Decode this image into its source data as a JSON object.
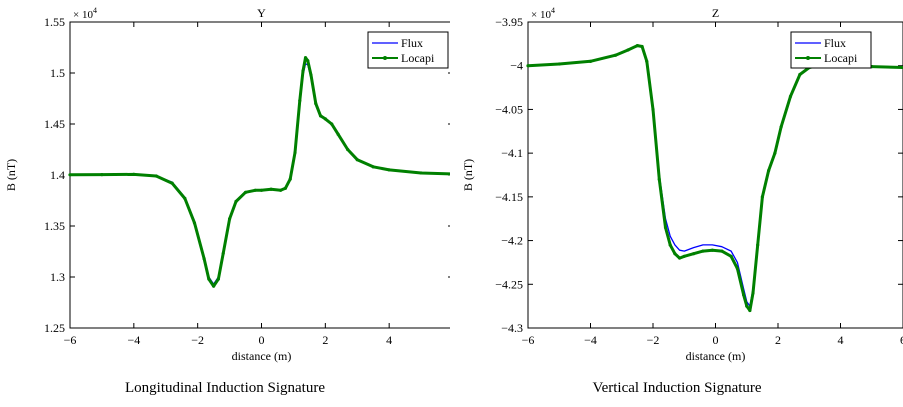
{
  "chart_data": [
    {
      "type": "line",
      "title": "Y",
      "caption": "Longitudinal Induction Signature",
      "xlabel": "distance (m)",
      "ylabel": "B (nT)",
      "exponent_label": "× 10",
      "exponent_power": "4",
      "xlim": [
        -6,
        6
      ],
      "ylim": [
        1.25,
        1.55
      ],
      "xticks": [
        -6,
        -4,
        -2,
        0,
        2,
        4,
        6
      ],
      "yticks": [
        1.25,
        1.3,
        1.35,
        1.4,
        1.45,
        1.5,
        1.55
      ],
      "xtick_labels": [
        "−6",
        "−4",
        "−2",
        "0",
        "2",
        "4",
        "6"
      ],
      "ytick_labels": [
        "1.25",
        "1.3",
        "1.35",
        "1.4",
        "1.45",
        "1.5",
        "1.55"
      ],
      "legend_position": "top-right",
      "x": [
        -6,
        -5,
        -4,
        -3.3,
        -2.8,
        -2.4,
        -2.1,
        -1.8,
        -1.65,
        -1.5,
        -1.35,
        -1.2,
        -1.0,
        -0.8,
        -0.5,
        -0.2,
        0.0,
        0.3,
        0.6,
        0.75,
        0.9,
        1.05,
        1.2,
        1.3,
        1.38,
        1.45,
        1.55,
        1.7,
        1.85,
        2.0,
        2.2,
        2.4,
        2.7,
        3.0,
        3.5,
        4.0,
        5.0,
        6.0
      ],
      "series": [
        {
          "name": "Flux",
          "color": "#0000ff",
          "values": [
            1.4002,
            1.4004,
            1.4006,
            1.399,
            1.393,
            1.378,
            1.355,
            1.32,
            1.3,
            1.293,
            1.3,
            1.325,
            1.358,
            1.375,
            1.383,
            1.385,
            1.385,
            1.386,
            1.385,
            1.387,
            1.395,
            1.42,
            1.47,
            1.498,
            1.509,
            1.508,
            1.495,
            1.468,
            1.457,
            1.455,
            1.45,
            1.44,
            1.425,
            1.415,
            1.408,
            1.405,
            1.402,
            1.401
          ]
        },
        {
          "name": "Locapi",
          "color": "#008000",
          "values": [
            1.4002,
            1.4004,
            1.4006,
            1.399,
            1.392,
            1.377,
            1.353,
            1.318,
            1.298,
            1.291,
            1.298,
            1.323,
            1.357,
            1.374,
            1.383,
            1.385,
            1.385,
            1.386,
            1.385,
            1.387,
            1.396,
            1.422,
            1.473,
            1.502,
            1.515,
            1.512,
            1.498,
            1.47,
            1.458,
            1.455,
            1.45,
            1.44,
            1.425,
            1.415,
            1.408,
            1.405,
            1.402,
            1.401
          ]
        }
      ]
    },
    {
      "type": "line",
      "title": "Z",
      "caption": "Vertical Induction Signature",
      "xlabel": "distance (m)",
      "ylabel": "B (nT)",
      "exponent_label": "× 10",
      "exponent_power": "4",
      "xlim": [
        -6,
        6
      ],
      "ylim": [
        -4.3,
        -3.95
      ],
      "xticks": [
        -6,
        -4,
        -2,
        0,
        2,
        4,
        6
      ],
      "yticks": [
        -4.3,
        -4.25,
        -4.2,
        -4.15,
        -4.1,
        -4.05,
        -4,
        -3.95
      ],
      "xtick_labels": [
        "−6",
        "−4",
        "−2",
        "0",
        "2",
        "4",
        "6"
      ],
      "ytick_labels": [
        "−4.3",
        "−4.25",
        "−4.2",
        "−4.15",
        "−4.1",
        "−4.05",
        "−4",
        "−3.95"
      ],
      "legend_position": "top-right",
      "x": [
        -6,
        -5,
        -4,
        -3.2,
        -2.8,
        -2.5,
        -2.35,
        -2.2,
        -2.0,
        -1.8,
        -1.6,
        -1.45,
        -1.3,
        -1.15,
        -1.0,
        -0.7,
        -0.4,
        -0.1,
        0.2,
        0.5,
        0.7,
        0.9,
        1.0,
        1.1,
        1.2,
        1.35,
        1.5,
        1.7,
        1.9,
        2.1,
        2.4,
        2.7,
        3.0,
        3.3,
        4.0,
        5.0,
        6.0
      ],
      "series": [
        {
          "name": "Flux",
          "color": "#0000ff",
          "values": [
            -4.0,
            -3.998,
            -3.995,
            -3.988,
            -3.982,
            -3.977,
            -3.978,
            -3.995,
            -4.05,
            -4.125,
            -4.175,
            -4.195,
            -4.205,
            -4.211,
            -4.212,
            -4.208,
            -4.205,
            -4.205,
            -4.207,
            -4.212,
            -4.225,
            -4.255,
            -4.27,
            -4.275,
            -4.255,
            -4.2,
            -4.15,
            -4.12,
            -4.1,
            -4.07,
            -4.035,
            -4.01,
            -4.002,
            -4.0,
            -4.0,
            -4.001,
            -4.002
          ]
        },
        {
          "name": "Locapi",
          "color": "#008000",
          "values": [
            -4.0,
            -3.998,
            -3.995,
            -3.988,
            -3.982,
            -3.977,
            -3.978,
            -3.995,
            -4.05,
            -4.13,
            -4.185,
            -4.205,
            -4.215,
            -4.22,
            -4.218,
            -4.215,
            -4.212,
            -4.211,
            -4.212,
            -4.218,
            -4.232,
            -4.262,
            -4.275,
            -4.28,
            -4.26,
            -4.205,
            -4.15,
            -4.12,
            -4.1,
            -4.07,
            -4.035,
            -4.01,
            -4.002,
            -4.0,
            -4.0,
            -4.001,
            -4.002
          ]
        }
      ]
    }
  ]
}
